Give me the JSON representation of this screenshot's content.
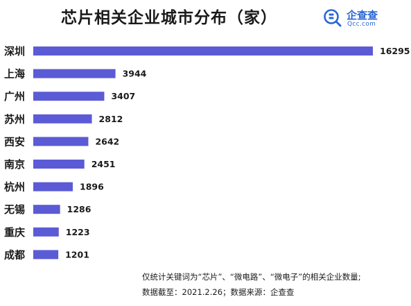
{
  "chart_data": {
    "type": "bar",
    "orientation": "horizontal",
    "title": "芯片相关企业城市分布（家）",
    "categories": [
      "深圳",
      "上海",
      "广州",
      "苏州",
      "西安",
      "南京",
      "杭州",
      "无锡",
      "重庆",
      "成都"
    ],
    "values": [
      16295,
      3944,
      3407,
      2812,
      2642,
      2451,
      1896,
      1286,
      1223,
      1201
    ],
    "xlim": [
      0,
      16295
    ],
    "grid": false,
    "legend": "none",
    "bar_color": "#5b5bd6"
  },
  "logo": {
    "name": "企查查",
    "domain": "Qcc.com",
    "color": "#2a66d6"
  },
  "footnote": {
    "line1": "仅统计关键词为“芯片”、“微电路”、“微电子”的相关企业数量;",
    "line2": "数据截至：2021.2.26；数据来源：企查查"
  }
}
